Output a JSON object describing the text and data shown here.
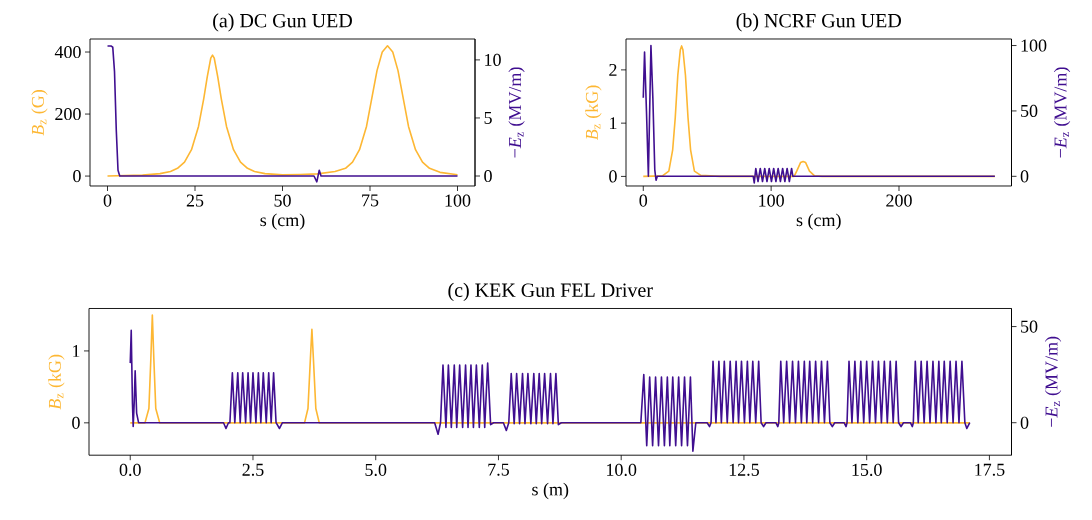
{
  "chart_data": [
    {
      "type": "line",
      "title": "(a) DC Gun UED",
      "xlabel": "s (cm)",
      "ylabel": "*B*$_{z}$ (G)",
      "y2label": "−*E*$_{z}$ (MV/m)",
      "xlim": [
        -5,
        105
      ],
      "ylim": [
        -32,
        442
      ],
      "y2lim": [
        -0.86,
        11.8
      ],
      "xticks": [
        0,
        25,
        50,
        75,
        100
      ],
      "yticks": [
        0,
        200,
        400
      ],
      "y2ticks": [
        0,
        5,
        10
      ],
      "series": [
        {
          "color": "#fdb733",
          "x": [
            0,
            10,
            15,
            18,
            20,
            22,
            24,
            26,
            27.5,
            28.5,
            29.5,
            30,
            30.5,
            31.5,
            32.5,
            34,
            36,
            38,
            40,
            42,
            45,
            50,
            55,
            60,
            65,
            68,
            70,
            72,
            74,
            75.5,
            77,
            78.5,
            80,
            81.5,
            83,
            84.5,
            86,
            88,
            90,
            92,
            95,
            100
          ],
          "values": [
            0,
            3,
            8,
            15,
            25,
            45,
            85,
            160,
            250,
            320,
            380,
            390,
            380,
            320,
            250,
            160,
            85,
            45,
            25,
            15,
            8,
            4,
            5,
            7,
            15,
            25,
            45,
            85,
            160,
            250,
            340,
            400,
            420,
            400,
            340,
            250,
            160,
            85,
            45,
            25,
            12,
            4
          ]
        },
        {
          "color": "#400f90",
          "axis": "y2",
          "x": [
            0,
            1,
            1.5,
            2,
            2.5,
            3,
            3.5,
            59,
            59.8,
            60.5,
            61,
            100
          ],
          "values": [
            11.2,
            11.2,
            11.1,
            9,
            4,
            0.5,
            0,
            0,
            -0.5,
            0.5,
            0,
            0
          ]
        }
      ]
    },
    {
      "type": "line",
      "title": "(b) NCRF Gun UED",
      "xlabel": "s (cm)",
      "ylabel": "*B*$_{z}$ (kG)",
      "y2label": "−*E*$_{z}$ (MV/m)",
      "xlim": [
        -13.5,
        288
      ],
      "ylim": [
        -0.18,
        2.58
      ],
      "y2lim": [
        -7.4,
        105
      ],
      "xticks": [
        0,
        100,
        200
      ],
      "yticks": [
        0,
        1,
        2
      ],
      "y2ticks": [
        0,
        50,
        100
      ],
      "series": [
        {
          "color": "#fdb733",
          "x": [
            0,
            15,
            20,
            23,
            25,
            27,
            29,
            30,
            31,
            33,
            35,
            37,
            40,
            45,
            60,
            118,
            120,
            123,
            125,
            127,
            130,
            134,
            140,
            275
          ],
          "values": [
            0,
            0.01,
            0.1,
            0.5,
            1.1,
            1.9,
            2.38,
            2.45,
            2.38,
            1.9,
            1.1,
            0.5,
            0.1,
            0.02,
            0,
            0,
            0.1,
            0.26,
            0.28,
            0.26,
            0.1,
            0.01,
            0,
            0
          ]
        },
        {
          "color": "#400f90",
          "axis": "y2",
          "x": [
            0,
            1,
            2.5,
            4,
            5,
            6,
            7.5,
            9,
            10,
            11,
            86,
            86.8,
            88,
            89.75,
            91.5,
            93.25,
            95,
            96.75,
            98.5,
            100.25,
            102,
            103.75,
            105.5,
            107.25,
            109,
            110.75,
            112.5,
            114.25,
            116,
            117,
            275
          ],
          "values": [
            60,
            95,
            50,
            0,
            50,
            100,
            60,
            5,
            -3,
            0,
            0,
            -5,
            6,
            -4,
            6,
            -4,
            6,
            -4,
            6,
            -4,
            6,
            -4,
            6,
            -4,
            6,
            -4,
            6,
            -4,
            6,
            0,
            0
          ]
        }
      ]
    },
    {
      "type": "line",
      "title": "(c) KEK Gun FEL Driver",
      "xlabel": "s (m)",
      "ylabel": "*B*$_{z}$ (kG)",
      "y2label": "−*E*$_{z}$ (MV/m)",
      "xlim": [
        -0.84,
        17.95
      ],
      "ylim": [
        -0.45,
        1.59
      ],
      "y2lim": [
        -16.9,
        59.4
      ],
      "xticks": [
        {
          "value": 0,
          "label": "0.0"
        },
        {
          "value": 2.5,
          "label": "2.5"
        },
        {
          "value": 5,
          "label": "5.0"
        },
        {
          "value": 7.5,
          "label": "7.5"
        },
        {
          "value": 10,
          "label": "10.0"
        },
        {
          "value": 12.5,
          "label": "12.5"
        },
        {
          "value": 15,
          "label": "15.0"
        },
        {
          "value": 17.5,
          "label": "17.5"
        }
      ],
      "yticks": [
        0,
        1
      ],
      "y2ticks": [
        0,
        50
      ],
      "series": [
        {
          "color": "#fdb733",
          "x": [
            0,
            0.3,
            0.38,
            0.42,
            0.45,
            0.48,
            0.52,
            0.6,
            3.55,
            3.62,
            3.67,
            3.7,
            3.73,
            3.78,
            3.85,
            17.1
          ],
          "values": [
            0,
            0,
            0.2,
            0.9,
            1.5,
            0.9,
            0.2,
            0,
            0,
            0.2,
            0.9,
            1.3,
            0.9,
            0.2,
            0,
            0
          ]
        },
        {
          "color": "#400f90",
          "axis": "y2",
          "x": [
            0,
            0.02,
            0.045,
            0.06,
            0.08,
            0.1,
            0.13,
            0.17,
            1.9,
            1.95,
            2.0,
            2.03,
            2.08,
            2.13,
            2.19,
            2.24,
            2.29,
            2.35,
            2.4,
            2.45,
            2.5,
            2.56,
            2.61,
            2.66,
            2.71,
            2.77,
            2.82,
            2.87,
            2.92,
            2.97,
            3.04,
            3.1,
            6.2,
            6.27,
            6.32,
            6.37,
            6.43,
            6.48,
            6.54,
            6.6,
            6.65,
            6.71,
            6.77,
            6.83,
            6.88,
            6.94,
            6.99,
            7.05,
            7.11,
            7.17,
            7.22,
            7.28,
            7.34,
            7.4,
            7.6,
            7.66,
            7.71,
            7.76,
            7.82,
            7.87,
            7.93,
            7.99,
            8.04,
            8.1,
            8.16,
            8.22,
            8.27,
            8.33,
            8.38,
            8.44,
            8.5,
            8.56,
            8.61,
            8.67,
            8.72,
            8.78,
            10.4,
            10.46,
            10.52,
            10.58,
            10.64,
            10.7,
            10.76,
            10.82,
            10.88,
            10.94,
            10.99,
            11.05,
            11.11,
            11.17,
            11.23,
            11.29,
            11.35,
            11.41,
            11.46,
            11.52,
            11.75,
            11.8,
            11.83,
            11.87,
            11.93,
            11.99,
            12.04,
            12.1,
            12.16,
            12.22,
            12.28,
            12.34,
            12.39,
            12.45,
            12.51,
            12.57,
            12.62,
            12.68,
            12.74,
            12.8,
            12.85,
            12.9,
            12.95,
            13.15,
            13.19,
            13.21,
            13.25,
            13.31,
            13.37,
            13.43,
            13.49,
            13.55,
            13.61,
            13.67,
            13.73,
            13.78,
            13.84,
            13.9,
            13.96,
            14.02,
            14.08,
            14.14,
            14.2,
            14.25,
            14.3,
            14.35,
            14.54,
            14.58,
            14.6,
            14.64,
            14.7,
            14.76,
            14.82,
            14.88,
            14.94,
            15.0,
            15.06,
            15.12,
            15.18,
            15.24,
            15.3,
            15.36,
            15.42,
            15.48,
            15.54,
            15.6,
            15.65,
            15.7,
            15.75,
            15.89,
            15.93,
            15.95,
            15.99,
            16.05,
            16.11,
            16.17,
            16.23,
            16.29,
            16.35,
            16.41,
            16.47,
            16.52,
            16.58,
            16.64,
            16.7,
            16.76,
            16.82,
            16.88,
            16.94,
            17.0,
            17.04,
            17.1
          ],
          "values": [
            31,
            48,
            10,
            -2,
            10,
            27,
            5,
            0,
            0,
            -3,
            0,
            0,
            26,
            0,
            26,
            0,
            26,
            0,
            26,
            0,
            26,
            0,
            26,
            0,
            26,
            0,
            26,
            0,
            26,
            0,
            -3,
            0,
            0,
            -6,
            0,
            30,
            -2.5,
            30,
            -2.5,
            30,
            -2.5,
            30,
            -2.5,
            30,
            -2.5,
            30,
            -2.5,
            30,
            -2.5,
            30,
            -2.5,
            31,
            -1,
            0,
            0,
            -4,
            0,
            25.6,
            -0.5,
            25.6,
            -0.5,
            25.6,
            -0.5,
            25.6,
            -0.5,
            25.6,
            -0.5,
            25.6,
            -0.5,
            25.6,
            -0.5,
            25.6,
            -0.5,
            25.6,
            -1,
            0,
            0,
            25,
            -12,
            23.8,
            -12,
            23.8,
            -12,
            23.8,
            -12,
            23.8,
            -12,
            23.8,
            -12,
            23.8,
            -12,
            23.8,
            -12,
            23.8,
            -14.8,
            0,
            0,
            -2,
            0,
            32,
            0,
            32,
            0,
            32,
            0,
            32,
            0,
            32,
            0,
            32,
            0,
            32,
            0,
            32,
            0,
            32,
            0,
            -2,
            0,
            0,
            -2,
            0,
            32,
            0,
            32,
            0,
            32,
            0,
            32,
            0,
            32,
            0,
            32,
            0,
            32,
            0,
            32,
            0,
            32,
            0,
            -2,
            0,
            0,
            -2,
            0,
            32,
            0,
            32,
            0,
            32,
            0,
            32,
            0,
            32,
            0,
            32,
            0,
            32,
            0,
            32,
            0,
            32,
            0,
            -2,
            0,
            0,
            -2,
            0,
            32,
            0,
            32,
            0,
            32,
            0,
            32,
            0,
            32,
            0,
            32,
            0,
            32,
            0,
            32,
            0,
            32,
            0,
            -3,
            0
          ]
        }
      ]
    }
  ]
}
